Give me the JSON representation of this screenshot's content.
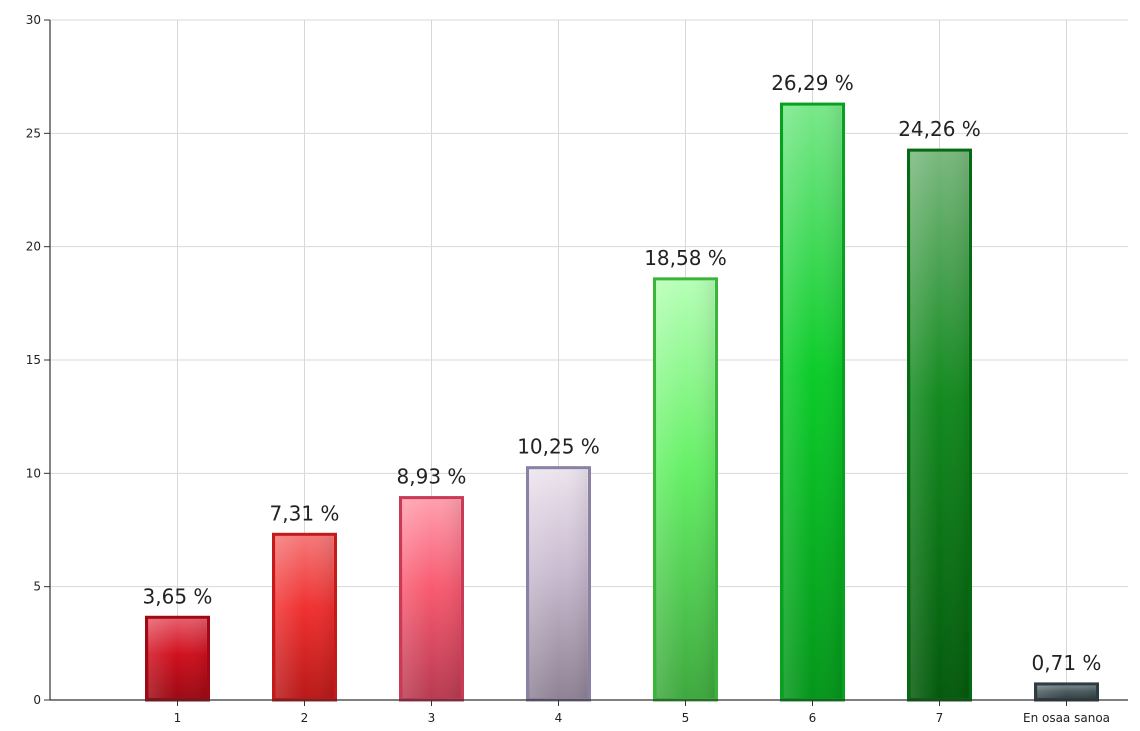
{
  "chart_data": {
    "type": "bar",
    "categories": [
      "1",
      "2",
      "3",
      "4",
      "5",
      "6",
      "7",
      "En osaa sanoa"
    ],
    "values": [
      3.65,
      7.31,
      8.93,
      10.25,
      18.58,
      26.29,
      24.26,
      0.71
    ],
    "data_labels": [
      "3,65 %",
      "7,31 %",
      "8,93 %",
      "10,25 %",
      "18,58 %",
      "26,29 %",
      "24,26 %",
      "0,71 %"
    ],
    "y_ticks": [
      "0",
      "5",
      "10",
      "15",
      "20",
      "25",
      "30"
    ],
    "ylim": [
      0,
      30
    ],
    "grid": true,
    "legend": "none",
    "colors": [
      {
        "light": "#e8606e",
        "mid": "#d0101e",
        "dark": "#9a0a14",
        "edge": "#a00814"
      },
      {
        "light": "#f57a7a",
        "mid": "#f03030",
        "dark": "#b81818",
        "edge": "#c41a1a"
      },
      {
        "light": "#ffa0b0",
        "mid": "#f85a70",
        "dark": "#b83a50",
        "edge": "#c83a55"
      },
      {
        "light": "#ece4ee",
        "mid": "#cabbd0",
        "dark": "#8e8294",
        "edge": "#8a82a4"
      },
      {
        "light": "#b6ffb6",
        "mid": "#66f066",
        "dark": "#3ea83e",
        "edge": "#3bb43b"
      },
      {
        "light": "#7ae88a",
        "mid": "#0ccc2a",
        "dark": "#04961a",
        "edge": "#07a01f"
      },
      {
        "light": "#7ab87e",
        "mid": "#138a1f",
        "dark": "#045a0c",
        "edge": "#066a12"
      },
      {
        "light": "#7e8e92",
        "mid": "#4e5e62",
        "dark": "#2c3a3e",
        "edge": "#2e3d41"
      }
    ]
  }
}
